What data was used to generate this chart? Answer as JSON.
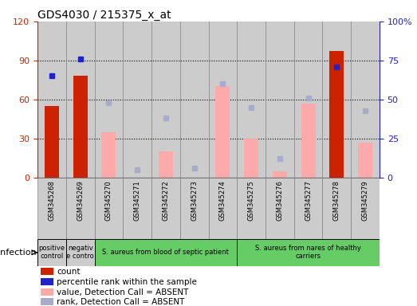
{
  "title": "GDS4030 / 215375_x_at",
  "samples": [
    "GSM345268",
    "GSM345269",
    "GSM345270",
    "GSM345271",
    "GSM345272",
    "GSM345273",
    "GSM345274",
    "GSM345275",
    "GSM345276",
    "GSM345277",
    "GSM345278",
    "GSM345279"
  ],
  "count": [
    55,
    78,
    null,
    null,
    null,
    null,
    null,
    null,
    null,
    null,
    97,
    null
  ],
  "percentile_rank": [
    65,
    76,
    null,
    null,
    null,
    null,
    null,
    null,
    null,
    null,
    71,
    null
  ],
  "value_absent": [
    null,
    null,
    35,
    null,
    20,
    null,
    70,
    30,
    5,
    57,
    null,
    27
  ],
  "rank_absent": [
    null,
    null,
    48,
    5,
    38,
    6,
    60,
    45,
    12,
    51,
    null,
    43
  ],
  "ylim_left": [
    0,
    120
  ],
  "ylim_right": [
    0,
    100
  ],
  "yticks_left": [
    0,
    30,
    60,
    90,
    120
  ],
  "yticks_right": [
    0,
    25,
    50,
    75,
    100
  ],
  "ytick_labels_right": [
    "0",
    "25",
    "50",
    "75",
    "100%"
  ],
  "color_count": "#cc2200",
  "color_rank": "#2222cc",
  "color_value_absent": "#ffaaaa",
  "color_rank_absent": "#aaaacc",
  "color_col_bg": "#cccccc",
  "groups": [
    {
      "label": "positive\ncontrol",
      "start": 0,
      "end": 1,
      "color": "#cccccc"
    },
    {
      "label": "negativ\ne contro",
      "start": 1,
      "end": 2,
      "color": "#cccccc"
    },
    {
      "label": "S. aureus from blood of septic patient",
      "start": 2,
      "end": 7,
      "color": "#66cc66"
    },
    {
      "label": "S. aureus from nares of healthy\ncarriers",
      "start": 7,
      "end": 12,
      "color": "#66cc66"
    }
  ],
  "infection_label": "infection",
  "legend_items": [
    {
      "label": "count",
      "color": "#cc2200"
    },
    {
      "label": "percentile rank within the sample",
      "color": "#2222cc"
    },
    {
      "label": "value, Detection Call = ABSENT",
      "color": "#ffaaaa"
    },
    {
      "label": "rank, Detection Call = ABSENT",
      "color": "#aaaacc"
    }
  ],
  "fig_width": 5.23,
  "fig_height": 3.84,
  "dpi": 100
}
